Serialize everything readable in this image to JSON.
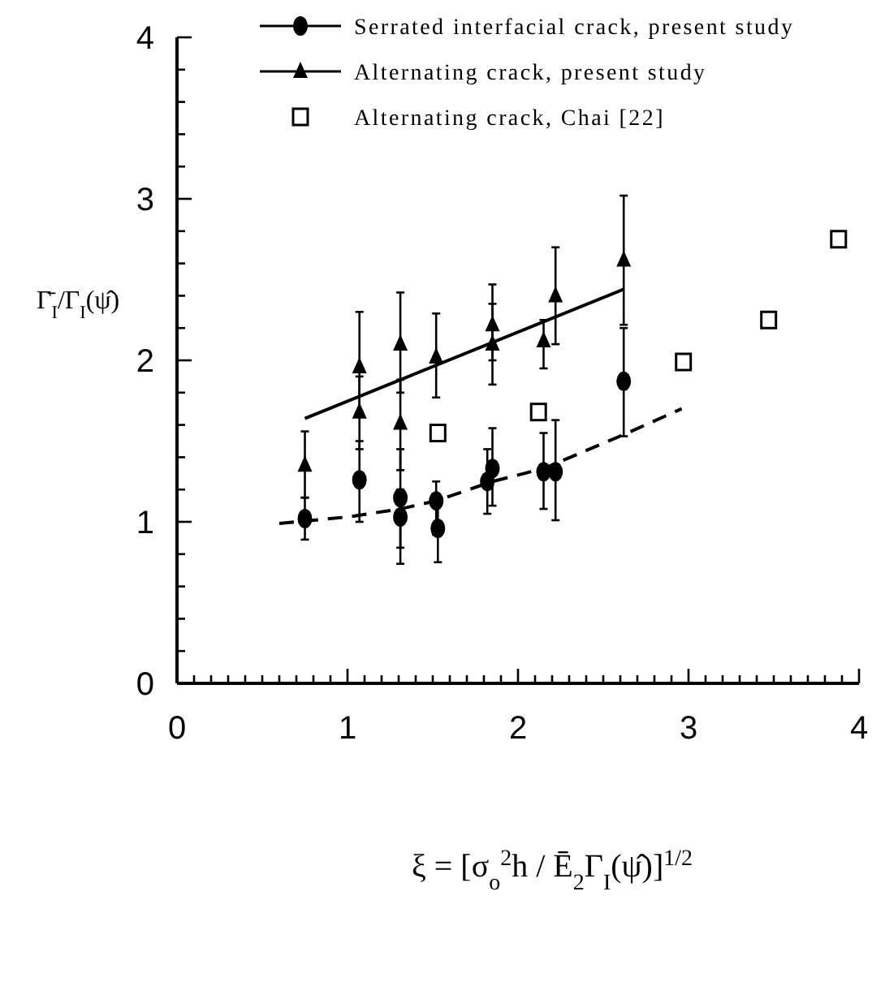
{
  "chart_data": {
    "type": "scatter",
    "ylabel": "Γ̄$_{I}$/Γ$_{I}$(ψ̂)",
    "xlabel": "ξ = [σ$_{o}$$^{2}$h / Ē$_{2}$Γ$_{I}$(ψ̂)]$^{1/2}$",
    "xlim": [
      0,
      4
    ],
    "ylim": [
      0,
      4
    ],
    "xticks": [
      0,
      {
        "value": 0.1,
        "label": null
      },
      {
        "value": 0.2,
        "label": null
      },
      {
        "value": 0.3,
        "label": null
      },
      {
        "value": 0.4,
        "label": null
      },
      {
        "value": 0.5,
        "label": null
      },
      {
        "value": 0.6,
        "label": null
      },
      {
        "value": 0.7,
        "label": null
      },
      {
        "value": 0.8,
        "label": null
      },
      {
        "value": 0.9,
        "label": null
      },
      1,
      {
        "value": 1.1,
        "label": null
      },
      {
        "value": 1.2,
        "label": null
      },
      {
        "value": 1.3,
        "label": null
      },
      {
        "value": 1.4,
        "label": null
      },
      {
        "value": 1.5,
        "label": null
      },
      {
        "value": 1.6,
        "label": null
      },
      {
        "value": 1.7,
        "label": null
      },
      {
        "value": 1.8,
        "label": null
      },
      {
        "value": 1.9,
        "label": null
      },
      2,
      {
        "value": 2.1,
        "label": null
      },
      {
        "value": 2.2,
        "label": null
      },
      {
        "value": 2.3,
        "label": null
      },
      {
        "value": 2.4,
        "label": null
      },
      {
        "value": 2.5,
        "label": null
      },
      {
        "value": 2.6,
        "label": null
      },
      {
        "value": 2.7,
        "label": null
      },
      {
        "value": 2.8,
        "label": null
      },
      {
        "value": 2.9,
        "label": null
      },
      3,
      {
        "value": 3.1,
        "label": null
      },
      {
        "value": 3.2,
        "label": null
      },
      {
        "value": 3.3,
        "label": null
      },
      {
        "value": 3.4,
        "label": null
      },
      {
        "value": 3.5,
        "label": null
      },
      {
        "value": 3.6,
        "label": null
      },
      {
        "value": 3.7,
        "label": null
      },
      {
        "value": 3.8,
        "label": null
      },
      {
        "value": 3.9,
        "label": null
      },
      4
    ],
    "yticks": [
      0,
      {
        "value": 0.2,
        "label": null
      },
      {
        "value": 0.4,
        "label": null
      },
      {
        "value": 0.6,
        "label": null
      },
      {
        "value": 0.8,
        "label": null
      },
      1,
      {
        "value": 1.2,
        "label": null
      },
      {
        "value": 1.4,
        "label": null
      },
      {
        "value": 1.6,
        "label": null
      },
      {
        "value": 1.8,
        "label": null
      },
      2,
      {
        "value": 2.2,
        "label": null
      },
      {
        "value": 2.4,
        "label": null
      },
      {
        "value": 2.6,
        "label": null
      },
      {
        "value": 2.8,
        "label": null
      },
      3,
      {
        "value": 3.2,
        "label": null
      },
      {
        "value": 3.4,
        "label": null
      },
      {
        "value": 3.6,
        "label": null
      },
      {
        "value": 3.8,
        "label": null
      },
      4
    ],
    "grid": false,
    "legend": "top right",
    "series": [
      {
        "name": "Serrated interfacial crack, present study",
        "marker": "circle",
        "color": "#000000",
        "x": [
          0.75,
          1.07,
          1.31,
          1.31,
          1.52,
          1.53,
          1.82,
          1.85,
          2.15,
          2.22,
          2.62
        ],
        "values": [
          1.02,
          1.26,
          1.15,
          1.03,
          1.13,
          0.96,
          1.25,
          1.33,
          1.31,
          1.31,
          1.87
        ],
        "errors": [
          [
            0.89,
            1.15
          ],
          [
            1.0,
            1.5
          ],
          [
            0.84,
            1.45
          ],
          [
            0.74,
            1.2
          ],
          [
            0.92,
            1.25
          ],
          [
            0.75,
            1.1
          ],
          [
            1.05,
            1.45
          ],
          [
            1.1,
            1.58
          ],
          [
            1.08,
            1.55
          ],
          [
            1.01,
            1.63
          ],
          [
            1.53,
            2.2
          ]
        ]
      },
      {
        "name": "Alternating crack, present study",
        "marker": "triangle",
        "color": "#000000",
        "x": [
          0.75,
          1.07,
          1.07,
          1.31,
          1.31,
          1.52,
          1.85,
          1.85,
          2.15,
          2.22,
          2.62
        ],
        "values": [
          1.35,
          1.68,
          1.96,
          1.61,
          2.1,
          2.02,
          2.1,
          2.22,
          2.12,
          2.4,
          2.62
        ],
        "errors": [
          [
            1.15,
            1.56
          ],
          [
            1.45,
            1.9
          ],
          [
            1.68,
            2.3
          ],
          [
            1.32,
            1.88
          ],
          [
            1.8,
            2.42
          ],
          [
            1.77,
            2.29
          ],
          [
            1.85,
            2.35
          ],
          [
            2.0,
            2.47
          ],
          [
            1.95,
            2.25
          ],
          [
            2.1,
            2.7
          ],
          [
            2.22,
            3.02
          ]
        ]
      },
      {
        "name": "Alternating crack, Chai [22]",
        "marker": "square",
        "color": "#000000",
        "x": [
          1.53,
          2.12,
          2.97,
          3.47,
          3.88
        ],
        "values": [
          1.55,
          1.68,
          1.99,
          2.25,
          2.75
        ]
      },
      {
        "type": "line",
        "line_style": "dashed",
        "color": "#000000",
        "x": [
          0.6,
          1.0,
          1.31,
          1.52,
          1.85,
          2.15,
          2.62,
          2.96
        ],
        "values": [
          0.99,
          1.03,
          1.08,
          1.13,
          1.25,
          1.33,
          1.54,
          1.7
        ]
      },
      {
        "type": "line",
        "line_style": "solid",
        "color": "#000000",
        "x": [
          0.75,
          2.62
        ],
        "values": [
          1.64,
          2.44
        ]
      }
    ]
  }
}
